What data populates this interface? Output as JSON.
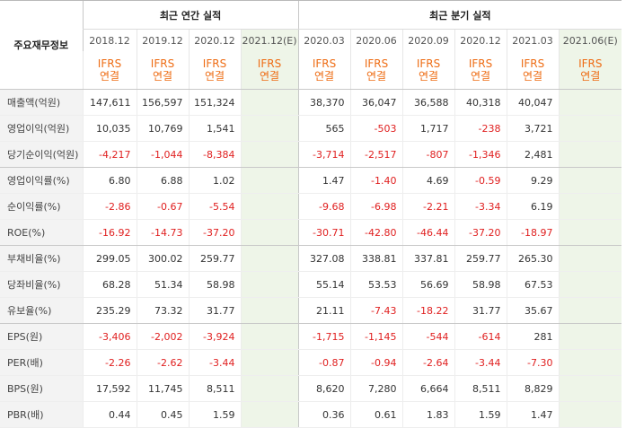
{
  "header": {
    "row_label": "주요재무정보",
    "annual_group": "최근 연간 실적",
    "quarter_group": "최근 분기 실적",
    "annual_periods": [
      "2018.12",
      "2019.12",
      "2020.12",
      "2021.12(E)"
    ],
    "quarter_periods": [
      "2020.03",
      "2020.06",
      "2020.09",
      "2020.12",
      "2021.03",
      "2021.06(E)"
    ],
    "ifrs_top": "IFRS",
    "ifrs_bottom": "연결"
  },
  "rows": [
    {
      "label": "매출액(억원)",
      "annual": [
        "147,611",
        "156,597",
        "151,324",
        ""
      ],
      "quarter": [
        "38,370",
        "36,047",
        "36,588",
        "40,318",
        "40,047",
        ""
      ]
    },
    {
      "label": "영업이익(억원)",
      "annual": [
        "10,035",
        "10,769",
        "1,541",
        ""
      ],
      "quarter": [
        "565",
        "-503",
        "1,717",
        "-238",
        "3,721",
        ""
      ]
    },
    {
      "label": "당기순이익(억원)",
      "annual": [
        "-4,217",
        "-1,044",
        "-8,384",
        ""
      ],
      "quarter": [
        "-3,714",
        "-2,517",
        "-807",
        "-1,346",
        "2,481",
        ""
      ]
    },
    {
      "label": "영업이익률(%)",
      "annual": [
        "6.80",
        "6.88",
        "1.02",
        ""
      ],
      "quarter": [
        "1.47",
        "-1.40",
        "4.69",
        "-0.59",
        "9.29",
        ""
      ]
    },
    {
      "label": "순이익률(%)",
      "annual": [
        "-2.86",
        "-0.67",
        "-5.54",
        ""
      ],
      "quarter": [
        "-9.68",
        "-6.98",
        "-2.21",
        "-3.34",
        "6.19",
        ""
      ]
    },
    {
      "label": "ROE(%)",
      "annual": [
        "-16.92",
        "-14.73",
        "-37.20",
        ""
      ],
      "quarter": [
        "-30.71",
        "-42.80",
        "-46.44",
        "-37.20",
        "-18.97",
        ""
      ]
    },
    {
      "label": "부채비율(%)",
      "annual": [
        "299.05",
        "300.02",
        "259.77",
        ""
      ],
      "quarter": [
        "327.08",
        "338.81",
        "337.81",
        "259.77",
        "265.30",
        ""
      ]
    },
    {
      "label": "당좌비율(%)",
      "annual": [
        "68.28",
        "51.34",
        "58.98",
        ""
      ],
      "quarter": [
        "55.14",
        "53.53",
        "56.69",
        "58.98",
        "67.53",
        ""
      ]
    },
    {
      "label": "유보율(%)",
      "annual": [
        "235.29",
        "73.32",
        "31.77",
        ""
      ],
      "quarter": [
        "21.11",
        "-7.43",
        "-18.22",
        "31.77",
        "35.67",
        ""
      ]
    },
    {
      "label": "EPS(원)",
      "annual": [
        "-3,406",
        "-2,002",
        "-3,924",
        ""
      ],
      "quarter": [
        "-1,715",
        "-1,145",
        "-544",
        "-614",
        "281",
        ""
      ]
    },
    {
      "label": "PER(배)",
      "annual": [
        "-2.26",
        "-2.62",
        "-3.44",
        ""
      ],
      "quarter": [
        "-0.87",
        "-0.94",
        "-2.64",
        "-3.44",
        "-7.30",
        ""
      ]
    },
    {
      "label": "BPS(원)",
      "annual": [
        "17,592",
        "11,745",
        "8,511",
        ""
      ],
      "quarter": [
        "8,620",
        "7,280",
        "6,664",
        "8,511",
        "8,829",
        ""
      ]
    },
    {
      "label": "PBR(배)",
      "annual": [
        "0.44",
        "0.45",
        "1.59",
        ""
      ],
      "quarter": [
        "0.36",
        "0.61",
        "1.83",
        "1.59",
        "1.47",
        ""
      ]
    }
  ],
  "colors": {
    "negative": "#e02020",
    "ifrs": "#ee6d15",
    "estimate_bg": "#eef5e8",
    "label_bg": "#f3f3f3"
  }
}
